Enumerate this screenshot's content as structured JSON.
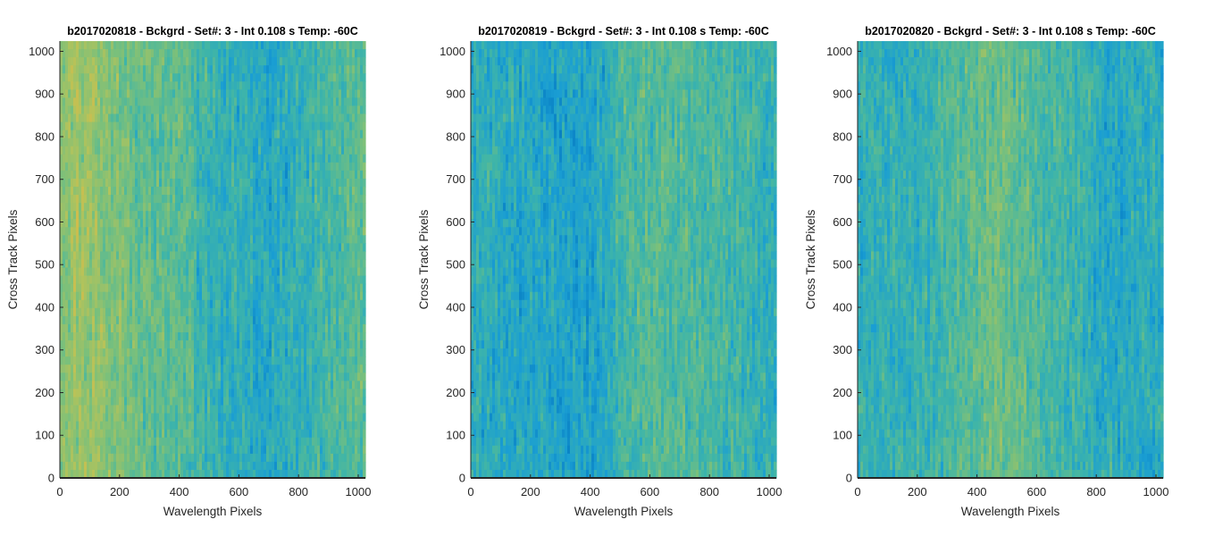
{
  "chart_data": [
    {
      "type": "heatmap",
      "title": "b2017020818 - Bckgrd - Set#: 3 - Int 0.108 s Temp: -60C",
      "xlabel": "Wavelength Pixels",
      "ylabel": "Cross Track Pixels",
      "xlim": [
        0,
        1024
      ],
      "ylim": [
        0,
        1024
      ],
      "xticks": [
        "0",
        "200",
        "400",
        "600",
        "800",
        "1000"
      ],
      "yticks": [
        "0",
        "100",
        "200",
        "300",
        "400",
        "500",
        "600",
        "700",
        "800",
        "900",
        "1000"
      ],
      "column_profile": {
        "x": [
          0,
          60,
          120,
          200,
          300,
          400,
          440,
          460,
          520,
          600,
          680,
          760,
          860,
          940,
          1024
        ],
        "level": [
          0.62,
          0.72,
          0.68,
          0.58,
          0.52,
          0.5,
          0.48,
          0.4,
          0.36,
          0.33,
          0.28,
          0.32,
          0.4,
          0.46,
          0.5
        ]
      }
    },
    {
      "type": "heatmap",
      "title": "b2017020819 - Bckgrd - Set#: 3 - Int 0.108 s Temp: -60C",
      "xlabel": "Wavelength Pixels",
      "ylabel": "Cross Track Pixels",
      "xlim": [
        0,
        1024
      ],
      "ylim": [
        0,
        1024
      ],
      "xticks": [
        "0",
        "200",
        "400",
        "600",
        "800",
        "1000"
      ],
      "yticks": [
        "0",
        "100",
        "200",
        "300",
        "400",
        "500",
        "600",
        "700",
        "800",
        "900",
        "1000"
      ],
      "column_profile": {
        "x": [
          0,
          100,
          200,
          300,
          400,
          470,
          500,
          560,
          640,
          720,
          800,
          880,
          960,
          1024
        ],
        "level": [
          0.32,
          0.3,
          0.28,
          0.25,
          0.26,
          0.3,
          0.42,
          0.46,
          0.48,
          0.46,
          0.44,
          0.4,
          0.36,
          0.34
        ]
      }
    },
    {
      "type": "heatmap",
      "title": "b2017020820 - Bckgrd - Set#: 3 - Int 0.108 s Temp: -60C",
      "xlabel": "Wavelength Pixels",
      "ylabel": "Cross Track Pixels",
      "xlim": [
        0,
        1024
      ],
      "ylim": [
        0,
        1024
      ],
      "xticks": [
        "0",
        "200",
        "400",
        "600",
        "800",
        "1000"
      ],
      "yticks": [
        "0",
        "100",
        "200",
        "300",
        "400",
        "500",
        "600",
        "700",
        "800",
        "900",
        "1000"
      ],
      "column_profile": {
        "x": [
          0,
          100,
          200,
          300,
          380,
          460,
          540,
          620,
          700,
          760,
          800,
          880,
          960,
          1024
        ],
        "level": [
          0.36,
          0.34,
          0.36,
          0.42,
          0.5,
          0.56,
          0.52,
          0.44,
          0.4,
          0.36,
          0.3,
          0.3,
          0.32,
          0.3
        ]
      }
    }
  ],
  "colormap": [
    "#0072bd",
    "#1a9ed3",
    "#3fb5a8",
    "#7cc07a",
    "#b5c35a",
    "#e6b740"
  ]
}
